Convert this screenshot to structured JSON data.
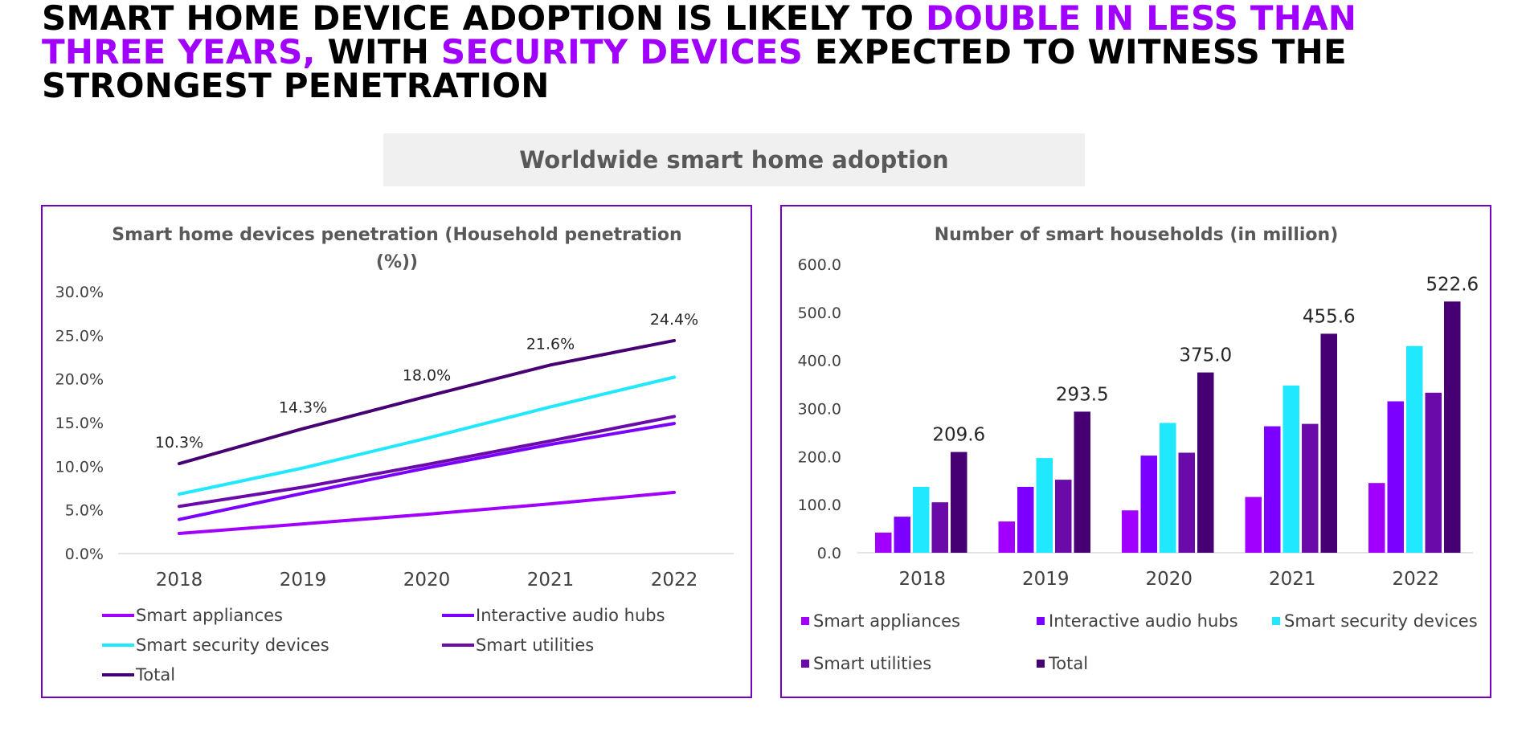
{
  "headline": {
    "part1": "SMART HOME DEVICE ADOPTION IS LIKELY TO ",
    "highlight1": "DOUBLE IN LESS THAN THREE YEARS,",
    "part2": " WITH ",
    "highlight2": "SECURITY DEVICES",
    "part3": " EXPECTED TO WITNESS THE STRONGEST PENETRATION"
  },
  "subtitle": "Worldwide smart home adoption",
  "colors": {
    "highlight": "#a100ff",
    "smart_appliances": "#a100ff",
    "interactive_audio_hubs": "#7b00ff",
    "smart_security_devices": "#1fe8ff",
    "smart_utilities": "#6a0aa8",
    "total": "#460073",
    "border": "#7500c0"
  },
  "chart_data": [
    {
      "type": "line",
      "title_line1": "Smart home devices penetration (Household penetration",
      "title_line2": "(%))",
      "categories": [
        "2018",
        "2019",
        "2020",
        "2021",
        "2022"
      ],
      "ylim": [
        0,
        30
      ],
      "y_ticks": [
        "0.0%",
        "5.0%",
        "10.0%",
        "15.0%",
        "20.0%",
        "25.0%",
        "30.0%"
      ],
      "grid": false,
      "legend_position": "bottom",
      "series": [
        {
          "name": "Smart appliances",
          "values": [
            2.3,
            3.4,
            4.5,
            5.7,
            7.0
          ]
        },
        {
          "name": "Interactive audio hubs",
          "values": [
            3.9,
            6.9,
            9.8,
            12.5,
            14.9
          ]
        },
        {
          "name": "Smart security devices",
          "values": [
            6.8,
            9.8,
            13.2,
            16.8,
            20.2
          ]
        },
        {
          "name": "Smart utilities",
          "values": [
            5.4,
            7.6,
            10.2,
            12.9,
            15.7
          ]
        },
        {
          "name": "Total",
          "values": [
            10.3,
            14.3,
            18.0,
            21.6,
            24.4
          ]
        }
      ],
      "total_labels": [
        "10.3%",
        "14.3%",
        "18.0%",
        "21.6%",
        "24.4%"
      ]
    },
    {
      "type": "bar",
      "title": "Number of smart households (in million)",
      "categories": [
        "2018",
        "2019",
        "2020",
        "2021",
        "2022"
      ],
      "ylim": [
        0,
        600
      ],
      "y_ticks": [
        "0.0",
        "100.0",
        "200.0",
        "300.0",
        "400.0",
        "500.0",
        "600.0"
      ],
      "grid": false,
      "legend_position": "bottom",
      "series": [
        {
          "name": "Smart appliances",
          "values": [
            42,
            65,
            88,
            116,
            145
          ]
        },
        {
          "name": "Interactive audio hubs",
          "values": [
            75,
            137,
            202,
            263,
            315
          ]
        },
        {
          "name": "Smart security devices",
          "values": [
            137,
            197,
            270,
            348,
            430
          ]
        },
        {
          "name": "Smart utilities",
          "values": [
            105,
            152,
            208,
            268,
            333
          ]
        },
        {
          "name": "Total",
          "values": [
            209.6,
            293.5,
            375.0,
            455.6,
            522.6
          ]
        }
      ],
      "total_labels": [
        "209.6",
        "293.5",
        "375.0",
        "455.6",
        "522.6"
      ]
    }
  ]
}
